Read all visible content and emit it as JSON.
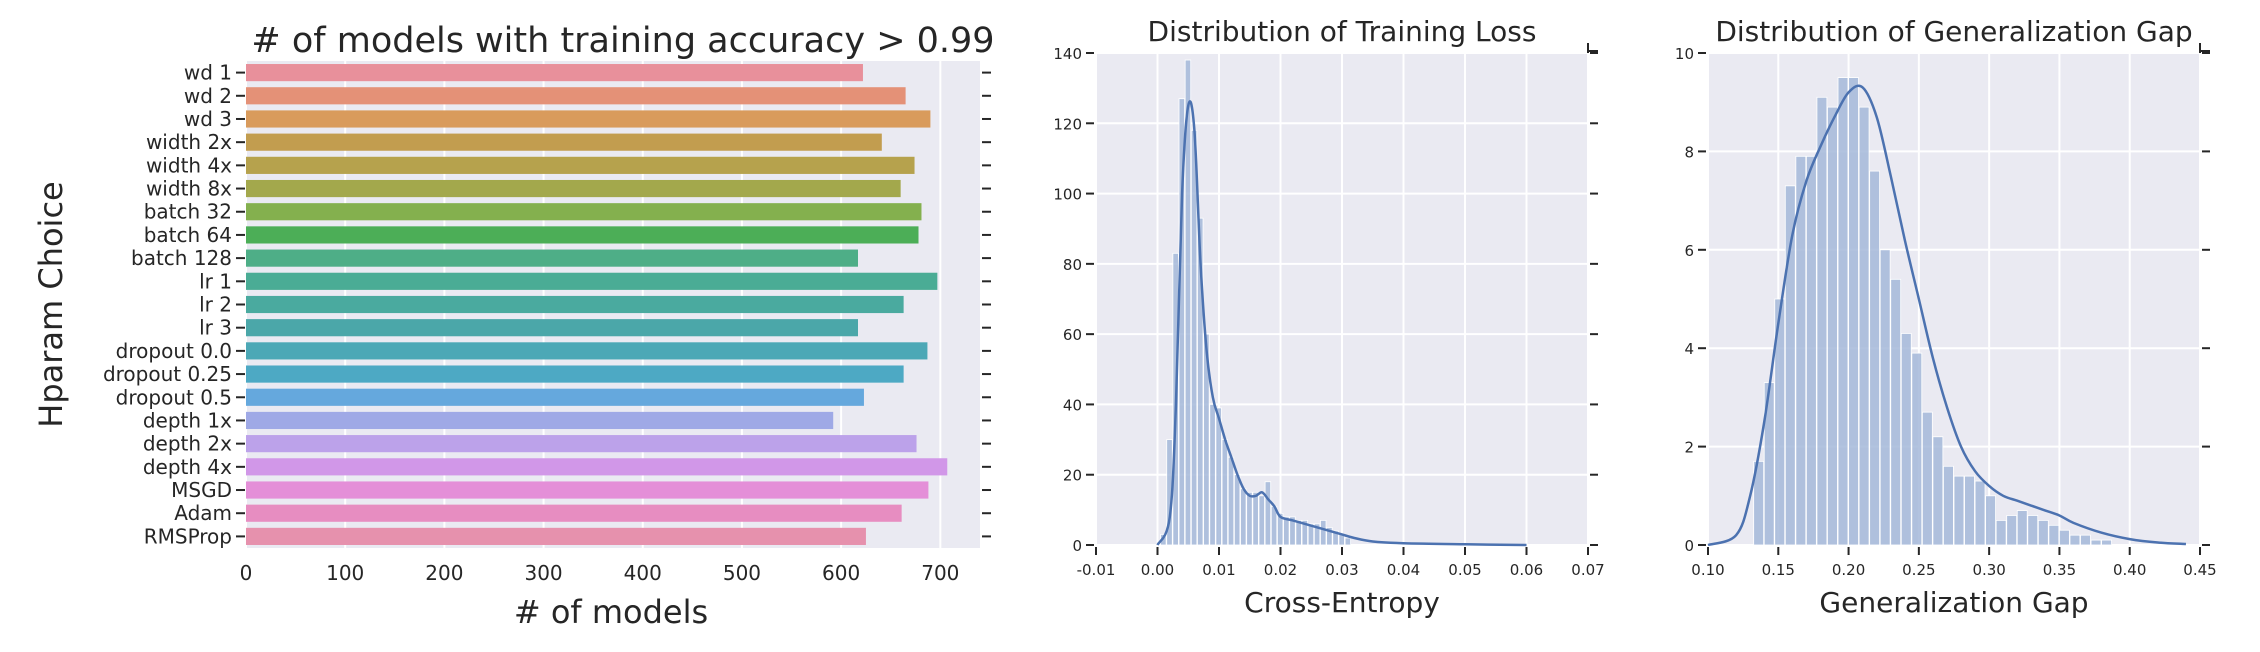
{
  "chart_data": [
    {
      "type": "bar",
      "orientation": "horizontal",
      "title": "# of models with training accuracy > 0.99",
      "xlabel": "# of models",
      "ylabel": "Hparam Choice",
      "xlim": [
        0,
        740
      ],
      "xticks": [
        0,
        100,
        200,
        300,
        400,
        500,
        600,
        700
      ],
      "grid": true,
      "categories": [
        "wd 1",
        "wd 2",
        "wd 3",
        "width 2x",
        "width 4x",
        "width 8x",
        "batch 32",
        "batch 64",
        "batch 128",
        "lr 1",
        "lr 2",
        "lr 3",
        "dropout 0.0",
        "dropout 0.25",
        "dropout 0.5",
        "depth 1x",
        "depth 2x",
        "depth 4x",
        "MSGD",
        "Adam",
        "RMSProp"
      ],
      "values": [
        622,
        665,
        690,
        641,
        674,
        660,
        681,
        678,
        617,
        697,
        663,
        617,
        687,
        663,
        623,
        592,
        676,
        707,
        688,
        661,
        625
      ],
      "colors": [
        "#e8909b",
        "#e49177",
        "#d99b5c",
        "#c29d4f",
        "#b6a24d",
        "#a3a84c",
        "#84b04e",
        "#4cae57",
        "#4eae87",
        "#4aac95",
        "#4aaa9f",
        "#4ba7a9",
        "#4ca8b6",
        "#4da9c4",
        "#65a8dd",
        "#9fa9e6",
        "#bca2ea",
        "#d197e8",
        "#e48fd8",
        "#e78dc1",
        "#e691ad"
      ]
    },
    {
      "type": "histogram",
      "title": "Distribution of Training Loss",
      "xlabel": "Cross-Entropy",
      "ylabel": "",
      "xlim": [
        -0.01,
        0.07
      ],
      "ylim": [
        0,
        140
      ],
      "xticks": [
        "-0.01",
        "0.00",
        "0.01",
        "0.02",
        "0.03",
        "0.04",
        "0.05",
        "0.06",
        "0.07"
      ],
      "yticks": [
        0,
        20,
        40,
        60,
        80,
        100,
        120,
        140
      ],
      "grid": true,
      "bin_edges": [
        0.0005,
        0.0015,
        0.0025,
        0.0035,
        0.0045,
        0.0055,
        0.0065,
        0.0075,
        0.0085,
        0.0095,
        0.0105,
        0.0115,
        0.0125,
        0.0135,
        0.0145,
        0.0155,
        0.0165,
        0.0175,
        0.0185,
        0.0195,
        0.0205,
        0.0215,
        0.0225,
        0.0235,
        0.0245,
        0.0255,
        0.0265,
        0.0275,
        0.0285,
        0.0295,
        0.0305,
        0.0315
      ],
      "counts": [
        3,
        30,
        83,
        127,
        138,
        118,
        93,
        60,
        40,
        39,
        30,
        25,
        20,
        16,
        15,
        15,
        14,
        18,
        11,
        9,
        8,
        8,
        7,
        7,
        6,
        6,
        7,
        5,
        4,
        3,
        2
      ],
      "kde": {
        "x": [
          0.0,
          0.002,
          0.003,
          0.004,
          0.005,
          0.006,
          0.007,
          0.008,
          0.009,
          0.01,
          0.011,
          0.012,
          0.013,
          0.014,
          0.015,
          0.016,
          0.017,
          0.018,
          0.019,
          0.02,
          0.022,
          0.024,
          0.026,
          0.028,
          0.03,
          0.032,
          0.035,
          0.04,
          0.05,
          0.06
        ],
        "y": [
          0,
          8,
          40,
          100,
          125,
          118,
          80,
          55,
          42,
          36,
          30,
          25,
          20,
          16,
          14,
          14,
          15,
          13,
          11,
          8,
          7,
          6,
          5,
          4,
          3,
          2,
          1,
          0.5,
          0.2,
          0
        ]
      },
      "color": "#4c72b0"
    },
    {
      "type": "histogram",
      "title": "Distribution of Generalization Gap",
      "xlabel": "Generalization Gap",
      "ylabel": "",
      "xlim": [
        0.1,
        0.45
      ],
      "ylim": [
        0,
        10
      ],
      "xticks": [
        "0.10",
        "0.15",
        "0.20",
        "0.25",
        "0.30",
        "0.35",
        "0.40",
        "0.45"
      ],
      "yticks": [
        0,
        2,
        4,
        6,
        8,
        10
      ],
      "grid": true,
      "bin_edges": [
        0.1325,
        0.14,
        0.1475,
        0.155,
        0.1625,
        0.17,
        0.1775,
        0.185,
        0.1925,
        0.2,
        0.2075,
        0.215,
        0.2225,
        0.23,
        0.2375,
        0.245,
        0.2525,
        0.26,
        0.2675,
        0.275,
        0.2825,
        0.29,
        0.2975,
        0.305,
        0.3125,
        0.32,
        0.3275,
        0.335,
        0.3425,
        0.35,
        0.3575,
        0.365,
        0.3725,
        0.38,
        0.3875
      ],
      "counts": [
        1.7,
        3.3,
        5.0,
        7.3,
        7.9,
        7.9,
        9.1,
        8.9,
        9.5,
        9.5,
        8.9,
        7.6,
        6.0,
        5.4,
        4.3,
        3.9,
        2.7,
        2.2,
        1.6,
        1.4,
        1.4,
        1.3,
        1.0,
        0.5,
        0.6,
        0.7,
        0.6,
        0.5,
        0.4,
        0.3,
        0.2,
        0.2,
        0.1,
        0.1
      ],
      "kde": {
        "x": [
          0.1,
          0.12,
          0.13,
          0.14,
          0.15,
          0.16,
          0.17,
          0.18,
          0.19,
          0.2,
          0.21,
          0.22,
          0.23,
          0.24,
          0.25,
          0.26,
          0.27,
          0.28,
          0.29,
          0.3,
          0.31,
          0.32,
          0.33,
          0.34,
          0.35,
          0.36,
          0.38,
          0.4,
          0.42,
          0.44
        ],
        "y": [
          0,
          0.2,
          1.0,
          2.5,
          4.5,
          6.3,
          7.4,
          8.1,
          8.7,
          9.2,
          9.3,
          8.7,
          7.5,
          6.2,
          5.0,
          3.8,
          2.8,
          2.0,
          1.5,
          1.2,
          1.0,
          0.9,
          0.8,
          0.7,
          0.6,
          0.45,
          0.25,
          0.12,
          0.05,
          0.02
        ]
      },
      "color": "#4c72b0"
    }
  ]
}
